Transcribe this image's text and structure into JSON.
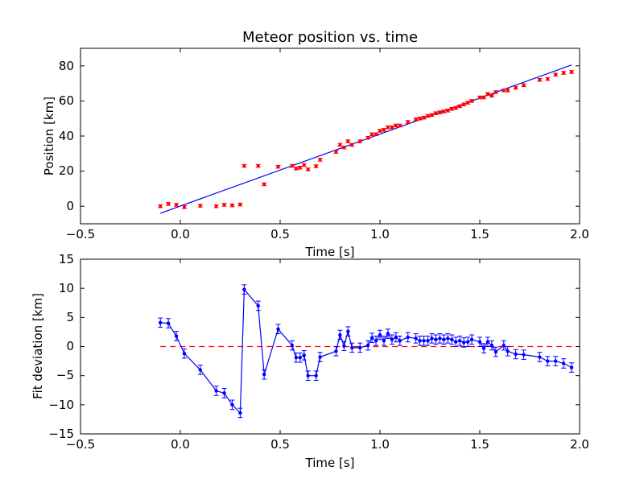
{
  "chart_data": [
    {
      "type": "scatter",
      "title": "Meteor position vs. time",
      "xlabel": "Time [s]",
      "ylabel": "Position [km]",
      "xlim": [
        -0.5,
        2.0
      ],
      "ylim": [
        -10,
        90
      ],
      "xticks": [
        "−0.5",
        "0.0",
        "0.5",
        "1.0",
        "1.5",
        "2.0"
      ],
      "yticks": [
        "0",
        "20",
        "40",
        "60",
        "80"
      ],
      "grid": false,
      "colors": {
        "points": "#ff0000",
        "fit": "#0000ff"
      },
      "series": [
        {
          "kind": "points-with-errorbars",
          "x": [
            -0.1,
            -0.06,
            -0.02,
            0.02,
            0.1,
            0.18,
            0.22,
            0.26,
            0.3,
            0.32,
            0.39,
            0.42,
            0.49,
            0.56,
            0.58,
            0.6,
            0.62,
            0.64,
            0.68,
            0.7,
            0.78,
            0.8,
            0.82,
            0.84,
            0.86,
            0.9,
            0.94,
            0.96,
            0.98,
            1.0,
            1.02,
            1.04,
            1.06,
            1.08,
            1.1,
            1.14,
            1.18,
            1.2,
            1.22,
            1.24,
            1.26,
            1.28,
            1.3,
            1.32,
            1.34,
            1.36,
            1.38,
            1.4,
            1.42,
            1.44,
            1.46,
            1.5,
            1.52,
            1.54,
            1.56,
            1.58,
            1.62,
            1.64,
            1.68,
            1.72,
            1.8,
            1.84,
            1.88,
            1.92,
            1.96
          ],
          "y": [
            0,
            1.3,
            0.8,
            -0.5,
            0.3,
            0,
            0.8,
            0.5,
            1,
            23,
            23,
            12.5,
            22.5,
            23,
            21.5,
            22,
            23.5,
            21,
            22.8,
            26.5,
            31,
            35,
            33.5,
            37,
            35,
            37,
            39,
            41,
            41,
            43,
            43.5,
            45,
            45,
            46,
            46,
            48,
            49.5,
            50,
            50.5,
            51.5,
            52,
            53,
            53.5,
            54,
            54.5,
            55.5,
            56,
            57,
            58,
            59,
            60,
            62,
            62,
            64,
            63,
            65,
            66,
            66,
            67.5,
            69,
            72,
            72.5,
            75,
            76,
            76.5
          ],
          "yerr": 0.8
        },
        {
          "kind": "fit-line",
          "x": [
            -0.1,
            1.96
          ],
          "y": [
            -4,
            80.5
          ]
        }
      ]
    },
    {
      "type": "line",
      "xlabel": "Time [s]",
      "ylabel": "Fit deviation [km]",
      "xlim": [
        -0.5,
        2.0
      ],
      "ylim": [
        -15,
        15
      ],
      "xticks": [
        "−0.5",
        "0.0",
        "0.5",
        "1.0",
        "1.5",
        "2.0"
      ],
      "yticks": [
        "−15",
        "−10",
        "−5",
        "0",
        "5",
        "10",
        "15"
      ],
      "grid": false,
      "colors": {
        "series": "#0000ff",
        "reference": "#ff0000"
      },
      "series": [
        {
          "kind": "line-with-errorbars",
          "x": [
            -0.1,
            -0.06,
            -0.02,
            0.02,
            0.1,
            0.18,
            0.22,
            0.26,
            0.3,
            0.32,
            0.39,
            0.42,
            0.49,
            0.56,
            0.58,
            0.6,
            0.62,
            0.64,
            0.68,
            0.7,
            0.78,
            0.8,
            0.82,
            0.84,
            0.86,
            0.9,
            0.94,
            0.96,
            0.98,
            1.0,
            1.02,
            1.04,
            1.06,
            1.08,
            1.1,
            1.14,
            1.18,
            1.2,
            1.22,
            1.24,
            1.26,
            1.28,
            1.3,
            1.32,
            1.34,
            1.36,
            1.38,
            1.4,
            1.42,
            1.44,
            1.46,
            1.5,
            1.52,
            1.54,
            1.56,
            1.58,
            1.62,
            1.64,
            1.68,
            1.72,
            1.8,
            1.84,
            1.88,
            1.92,
            1.96
          ],
          "y": [
            4.1,
            4.0,
            1.8,
            -1.2,
            -4,
            -7.6,
            -8.0,
            -10.0,
            -11.4,
            9.8,
            7.0,
            -4.8,
            3.0,
            0.2,
            -1.9,
            -1.9,
            -1.5,
            -5.0,
            -5.0,
            -1.8,
            -0.8,
            2.0,
            0.1,
            2.6,
            -0.2,
            -0.2,
            0.2,
            1.5,
            1.0,
            2.0,
            1.0,
            2.2,
            1.2,
            1.6,
            1.0,
            1.6,
            1.4,
            1.0,
            1.0,
            1.0,
            1.4,
            1.2,
            1.4,
            1.2,
            1.4,
            1.2,
            0.8,
            1.0,
            0.7,
            0.8,
            1.2,
            0.8,
            -0.3,
            0.8,
            0.2,
            -0.9,
            0.2,
            -0.8,
            -1.3,
            -1.4,
            -1.8,
            -2.5,
            -2.5,
            -2.9,
            -3.6
          ],
          "yerr": 0.8
        },
        {
          "kind": "reference-dashed",
          "x": [
            -0.1,
            1.96
          ],
          "y": [
            0,
            0
          ]
        }
      ]
    }
  ]
}
